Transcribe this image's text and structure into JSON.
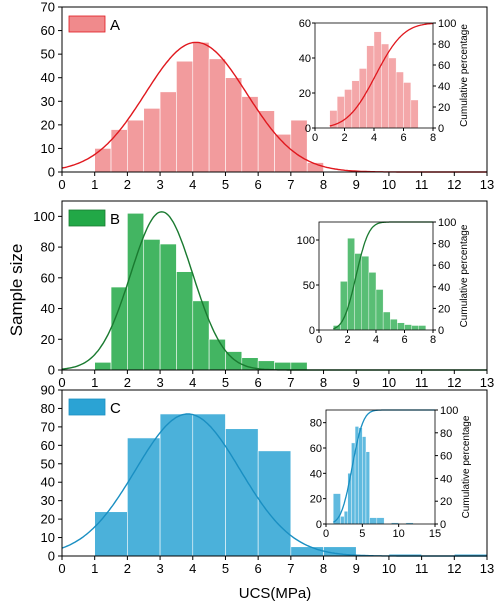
{
  "figure": {
    "ylabel": "Sample size",
    "xlabel": "UCS(MPa)"
  },
  "chart_data": [
    {
      "type": "bar",
      "panel": "A",
      "color": "#F08A8C",
      "curve_color": "#E0181E",
      "bin_edges": [
        0,
        1,
        1.5,
        2,
        2.5,
        3,
        3.5,
        4,
        4.5,
        5,
        5.5,
        6,
        6.5,
        7,
        7.5,
        8,
        8.5,
        9,
        9.5,
        10,
        10.5,
        11,
        11.5,
        12,
        12.5,
        13
      ],
      "values": [
        0,
        10,
        18,
        22,
        27,
        34,
        47,
        55,
        48,
        40,
        32,
        26,
        16,
        22,
        4,
        0,
        0,
        0,
        0,
        0,
        0,
        0,
        0,
        0,
        0
      ],
      "fit_normal": {
        "mean": 4.1,
        "sd": 1.55,
        "peak": 55
      },
      "xlim": [
        0,
        13
      ],
      "ylim": [
        0,
        70
      ],
      "xticks": [
        "0",
        "1",
        "2",
        "3",
        "4",
        "5",
        "6",
        "7",
        "8",
        "9",
        "10",
        "11",
        "12",
        "13"
      ],
      "yticks": [
        "0",
        "10",
        "20",
        "30",
        "40",
        "50",
        "60",
        "70"
      ],
      "legend": "A",
      "inset": {
        "ylabel_right": "Cumulative percentage",
        "xlim": [
          0,
          8
        ],
        "ylim_left": [
          0,
          60
        ],
        "ylim_right": [
          0,
          100
        ],
        "xticks": [
          "0",
          "2",
          "4",
          "6",
          "8"
        ],
        "yticks_left": [
          "0",
          "20",
          "40",
          "60"
        ],
        "yticks_right": [
          "0",
          "20",
          "40",
          "60",
          "80",
          "100"
        ],
        "bin_edges": [
          1,
          1.5,
          2,
          2.5,
          3,
          3.5,
          4,
          4.5,
          5,
          5.5,
          6,
          6.5,
          7
        ],
        "values": [
          10,
          18,
          22,
          27,
          34,
          47,
          55,
          48,
          40,
          32,
          26,
          16
        ],
        "cdf_curve": {
          "mean": 4.1,
          "sd": 1.5
        }
      }
    },
    {
      "type": "bar",
      "panel": "B",
      "color": "#22A847",
      "curve_color": "#1A7A30",
      "bin_edges": [
        0,
        1,
        1.5,
        2,
        2.5,
        3,
        3.5,
        4,
        4.5,
        5,
        5.5,
        6,
        6.5,
        7,
        7.5,
        8,
        8.5,
        9,
        9.5,
        10,
        10.5,
        11,
        11.5,
        12,
        12.5,
        13
      ],
      "values": [
        0,
        5,
        54,
        102,
        85,
        82,
        64,
        45,
        20,
        12,
        8,
        6,
        5,
        5,
        0,
        0,
        0,
        0,
        0,
        0,
        0,
        0,
        0,
        0,
        0
      ],
      "fit_normal": {
        "mean": 3.05,
        "sd": 0.95,
        "peak": 103
      },
      "xlim": [
        0,
        13
      ],
      "ylim": [
        0,
        110
      ],
      "xticks": [
        "0",
        "1",
        "2",
        "3",
        "4",
        "5",
        "6",
        "7",
        "8",
        "9",
        "10",
        "11",
        "12",
        "13"
      ],
      "yticks": [
        "0",
        "20",
        "40",
        "60",
        "80",
        "100"
      ],
      "legend": "B",
      "inset": {
        "ylabel_right": "Cumulative percentage",
        "xlim": [
          0,
          8
        ],
        "ylim_left": [
          0,
          120
        ],
        "ylim_right": [
          0,
          100
        ],
        "xticks": [
          "0",
          "2",
          "4",
          "6",
          "8"
        ],
        "yticks_left": [
          "0",
          "50",
          "100"
        ],
        "yticks_right": [
          "0",
          "20",
          "40",
          "60",
          "80",
          "100"
        ],
        "bin_edges": [
          1,
          1.5,
          2,
          2.5,
          3,
          3.5,
          4,
          4.5,
          5,
          5.5,
          6,
          6.5,
          7,
          7.5
        ],
        "values": [
          5,
          54,
          102,
          85,
          82,
          64,
          45,
          20,
          12,
          8,
          6,
          5,
          5
        ],
        "cdf_curve": {
          "mean": 2.6,
          "sd": 0.7
        }
      }
    },
    {
      "type": "bar",
      "panel": "C",
      "color": "#2BA3D4",
      "curve_color": "#1A8FC2",
      "bin_edges": [
        0,
        1,
        2,
        3,
        4,
        5,
        6,
        7,
        8,
        9,
        10,
        11,
        12,
        13
      ],
      "values": [
        0,
        24,
        64,
        77,
        77,
        69,
        57,
        5,
        5,
        0,
        1,
        0,
        1
      ],
      "fit_normal": {
        "mean": 3.85,
        "sd": 1.6,
        "peak": 77
      },
      "xlim": [
        0,
        13
      ],
      "ylim": [
        0,
        90
      ],
      "xticks": [
        "0",
        "1",
        "2",
        "3",
        "4",
        "5",
        "6",
        "7",
        "8",
        "9",
        "10",
        "11",
        "12",
        "13"
      ],
      "yticks": [
        "0",
        "10",
        "20",
        "30",
        "40",
        "50",
        "60",
        "70",
        "80",
        "90"
      ],
      "legend": "C",
      "inset": {
        "ylabel_right": "Cumulative percentage",
        "xlim": [
          0,
          15
        ],
        "ylim_left": [
          0,
          90
        ],
        "ylim_right": [
          0,
          100
        ],
        "xticks": [
          "0",
          "5",
          "10",
          "15"
        ],
        "yticks_left": [
          "0",
          "20",
          "40",
          "60",
          "80"
        ],
        "yticks_right": [
          "0",
          "20",
          "40",
          "60",
          "80",
          "100"
        ],
        "bin_edges": [
          1,
          2,
          2.5,
          3,
          3.5,
          4,
          4.5,
          5,
          5.5,
          6,
          7,
          8,
          9,
          10,
          11,
          12,
          13
        ],
        "values": [
          24,
          6,
          10,
          40,
          64,
          77,
          76,
          69,
          57,
          5,
          5,
          0,
          1,
          0,
          1,
          0
        ],
        "cdf_curve": {
          "mean": 3.6,
          "sd": 1.2
        }
      }
    }
  ]
}
